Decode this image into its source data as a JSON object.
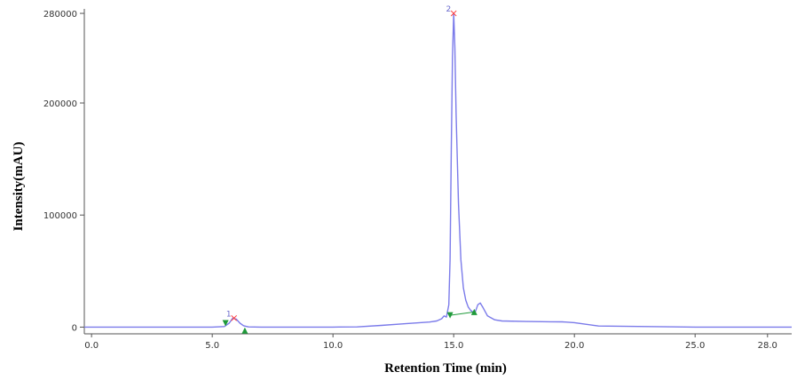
{
  "chart_data": {
    "type": "line",
    "title": "",
    "xlabel": "Retention Time (min)",
    "ylabel": "Intensity(mAU)",
    "xlim": [
      -0.3,
      29
    ],
    "ylim": [
      -6000,
      284000
    ],
    "x_ticks": [
      {
        "value": 0,
        "label": "0.0"
      },
      {
        "value": 5,
        "label": "5.0"
      },
      {
        "value": 10,
        "label": "10.0"
      },
      {
        "value": 15,
        "label": "15.0"
      },
      {
        "value": 20,
        "label": "20.0"
      },
      {
        "value": 25,
        "label": "25.0"
      },
      {
        "value": 28,
        "label": "28.0"
      }
    ],
    "y_ticks": [
      {
        "value": 0,
        "label": "0"
      },
      {
        "value": 100000,
        "label": "100000"
      },
      {
        "value": 200000,
        "label": "200000"
      },
      {
        "value": 280000,
        "label": "280000"
      }
    ],
    "grid": false,
    "legend": "none",
    "colors": {
      "trace": "#7b7bea",
      "peak_top": "#ff3b3b",
      "marker": "#1f9a3a",
      "baseline": "#1f9a3a",
      "axis": "#555555"
    },
    "series": [
      {
        "x": [
          -0.3,
          5.0,
          5.5,
          5.7,
          5.85,
          6.0,
          6.15,
          6.3,
          6.5,
          7.0,
          10.0,
          11.0,
          12.0,
          13.0,
          13.6,
          14.0,
          14.3,
          14.5,
          14.6,
          14.7,
          14.8,
          14.85,
          14.9,
          14.95,
          15.0,
          15.05,
          15.1,
          15.2,
          15.3,
          15.4,
          15.5,
          15.6,
          15.7,
          15.8,
          15.9,
          16.0,
          16.1,
          16.2,
          16.4,
          16.7,
          17.0,
          18.0,
          19.0,
          19.5,
          20.0,
          21.0,
          25.0,
          29.0
        ],
        "y": [
          0,
          0,
          500,
          3500,
          8000,
          7000,
          3500,
          1200,
          200,
          0,
          0,
          200,
          1500,
          3000,
          4000,
          4500,
          5500,
          7500,
          10000,
          9000,
          20000,
          60000,
          160000,
          240000,
          280000,
          250000,
          190000,
          110000,
          60000,
          35000,
          24000,
          18000,
          15000,
          13500,
          14000,
          20000,
          21500,
          18000,
          10000,
          6500,
          5500,
          5000,
          4800,
          4700,
          4000,
          1000,
          0,
          0
        ]
      }
    ],
    "peaks": [
      {
        "label": "1",
        "x": 5.9,
        "y": 8000
      },
      {
        "label": "2",
        "x": 15.0,
        "y": 280000
      }
    ],
    "markers": [
      {
        "symbol": "down",
        "x": 5.55,
        "y": 3500
      },
      {
        "symbol": "up",
        "x": 6.35,
        "y": -3000
      },
      {
        "symbol": "down",
        "x": 14.85,
        "y": 10500
      },
      {
        "symbol": "up",
        "x": 15.85,
        "y": 13500
      }
    ],
    "baselines": [
      {
        "x1": 14.85,
        "y1": 10500,
        "x2": 15.85,
        "y2": 13500
      }
    ]
  }
}
